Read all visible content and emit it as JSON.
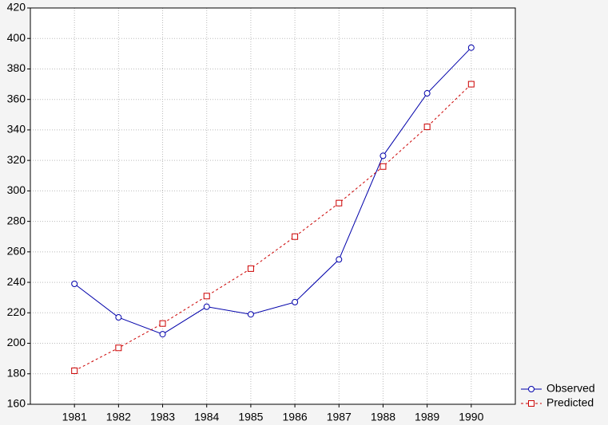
{
  "chart_data": {
    "type": "line",
    "x": [
      1981,
      1982,
      1983,
      1984,
      1985,
      1986,
      1987,
      1988,
      1989,
      1990
    ],
    "series": [
      {
        "name": "Observed",
        "color": "#0000aa",
        "marker": "circle",
        "dash": false,
        "values": [
          239,
          217,
          206,
          224,
          219,
          227,
          255,
          323,
          364,
          394
        ]
      },
      {
        "name": "Predicted",
        "color": "#cc0000",
        "marker": "square",
        "dash": true,
        "values": [
          182,
          197,
          213,
          231,
          249,
          270,
          292,
          316,
          342,
          370
        ]
      }
    ],
    "xlim": [
      1980,
      1991
    ],
    "xticks": [
      1981,
      1982,
      1983,
      1984,
      1985,
      1986,
      1987,
      1988,
      1989,
      1990
    ],
    "ylim": [
      160,
      420
    ],
    "yticks": [
      160,
      180,
      200,
      220,
      240,
      260,
      280,
      300,
      320,
      340,
      360,
      380,
      400,
      420
    ],
    "grid": true,
    "legend": "bottom-right"
  }
}
